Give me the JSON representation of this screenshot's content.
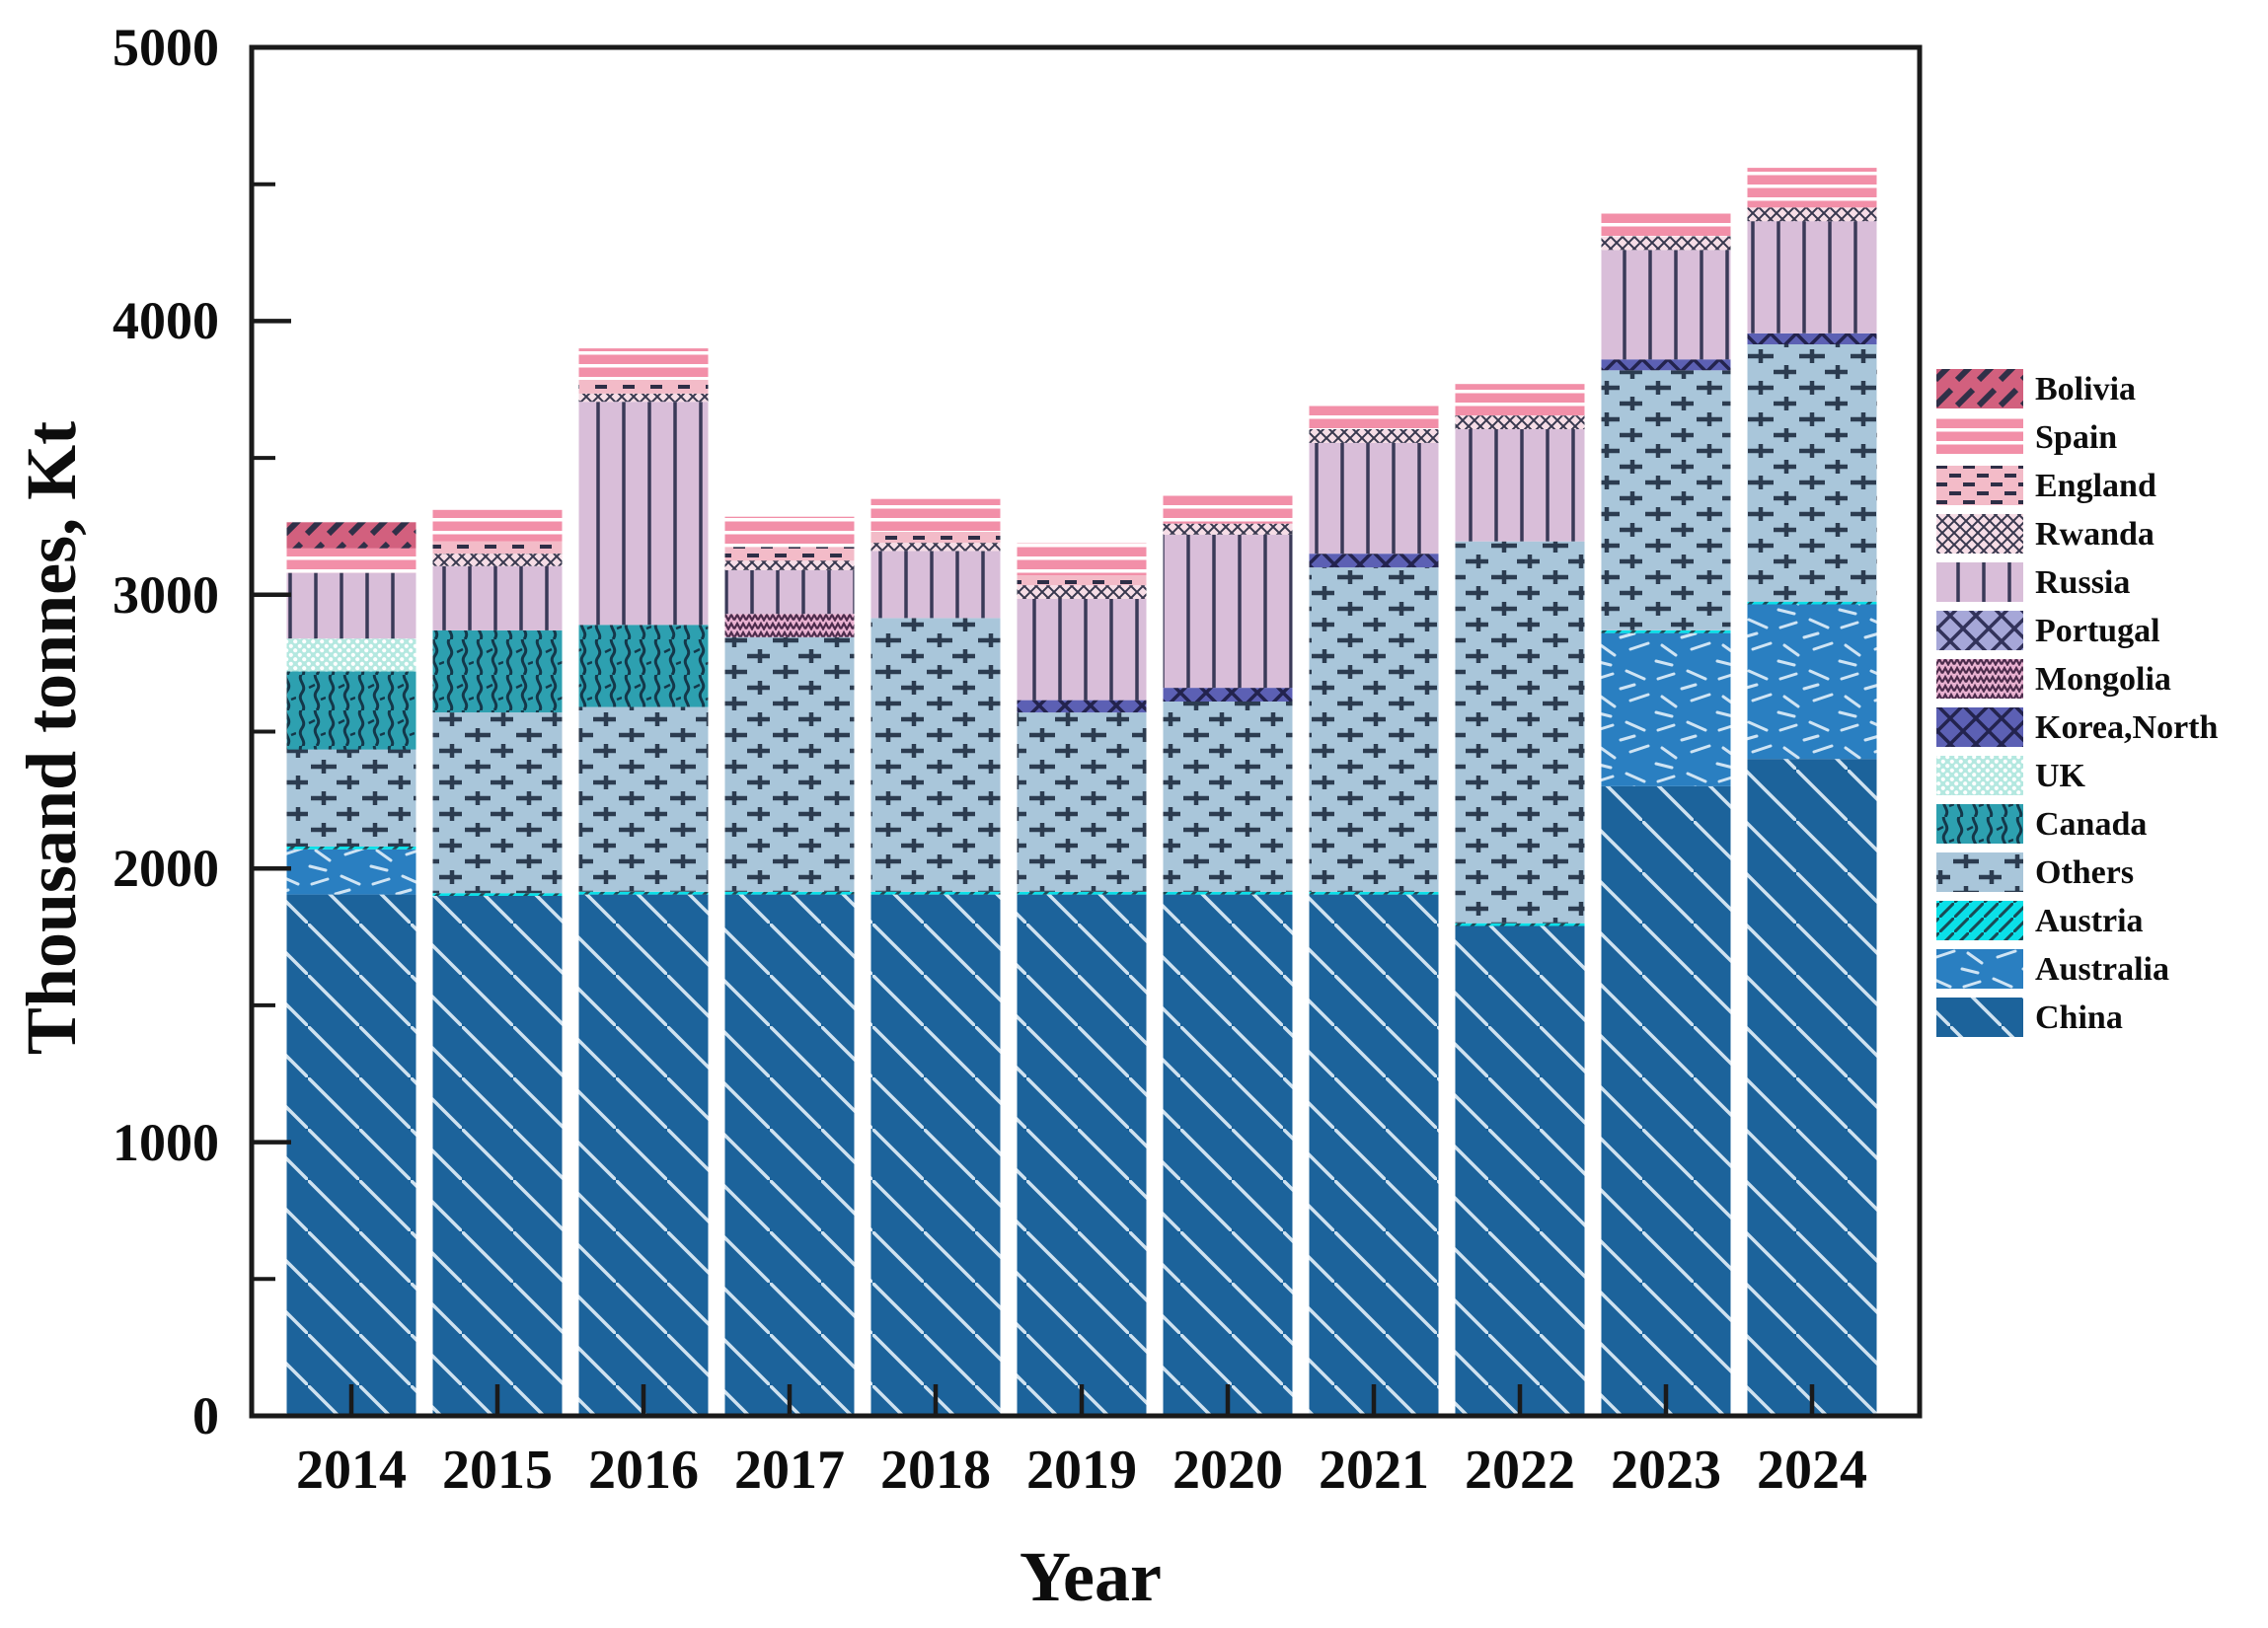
{
  "background": "#ffffff",
  "chart_data": {
    "type": "bar",
    "stacked": true,
    "title": "",
    "xlabel": "Year",
    "ylabel": "Thousand tonnes, Kt",
    "unit": "Kt",
    "categories": [
      "2014",
      "2015",
      "2016",
      "2017",
      "2018",
      "2019",
      "2020",
      "2021",
      "2022",
      "2023",
      "2024"
    ],
    "ylim": [
      0,
      5000
    ],
    "ytick_major_step": 1000,
    "ytick_minor_step": 500,
    "ytick_labels": [
      "0",
      "1000",
      "2000",
      "3000",
      "4000",
      "5000"
    ],
    "grid": false,
    "legend_position": "right-outside",
    "legend_order_top_to_bottom": [
      "Bolivia",
      "Spain",
      "England",
      "Rwanda",
      "Russia",
      "Portugal",
      "Mongolia",
      "Korea,North",
      "UK",
      "Canada",
      "Others",
      "Austria",
      "Australia",
      "China"
    ],
    "series": [
      {
        "name": "China",
        "color": "#1c639b",
        "hatch": "#cfe2f0",
        "pattern": "diag-down-light",
        "values": [
          1905,
          1900,
          1905,
          1905,
          1905,
          1905,
          1905,
          1905,
          1790,
          2300,
          2400
        ]
      },
      {
        "name": "Australia",
        "color": "#2a7fc1",
        "hatch": "#cfe4f4",
        "pattern": "arrows",
        "values": [
          165,
          0,
          0,
          0,
          0,
          0,
          0,
          0,
          0,
          560,
          565
        ]
      },
      {
        "name": "Austria",
        "color": "#0be0e8",
        "hatch": "#1a4a55",
        "pattern": "diag-up-dark",
        "values": [
          10,
          10,
          10,
          10,
          10,
          10,
          10,
          10,
          10,
          10,
          10
        ]
      },
      {
        "name": "Others",
        "color": "#a9c6da",
        "hatch": "#2c3c50",
        "pattern": "plus",
        "values": [
          355,
          660,
          675,
          930,
          1000,
          655,
          695,
          1185,
          1395,
          950,
          940
        ]
      },
      {
        "name": "Canada",
        "color": "#2da0b0",
        "hatch": "#14384a",
        "pattern": "waves",
        "values": [
          285,
          300,
          300,
          0,
          0,
          0,
          0,
          0,
          0,
          0,
          0
        ]
      },
      {
        "name": "UK",
        "color": "#b4e8e0",
        "hatch": "#ffffff",
        "pattern": "dots",
        "values": [
          120,
          0,
          0,
          0,
          0,
          0,
          0,
          0,
          0,
          0,
          0
        ]
      },
      {
        "name": "Korea,North",
        "color": "#5c60b4",
        "hatch": "#23234e",
        "pattern": "cross-x",
        "values": [
          0,
          0,
          0,
          0,
          0,
          45,
          50,
          50,
          0,
          40,
          40
        ]
      },
      {
        "name": "Mongolia",
        "color": "#e9b2d1",
        "hatch": "#4c2c4c",
        "pattern": "zigzag",
        "values": [
          0,
          0,
          0,
          85,
          0,
          0,
          0,
          0,
          0,
          0,
          0
        ]
      },
      {
        "name": "Portugal",
        "color": "#a6a7d8",
        "hatch": "#32325a",
        "pattern": "cross-x",
        "values": [
          0,
          0,
          0,
          0,
          0,
          0,
          0,
          0,
          0,
          0,
          0
        ]
      },
      {
        "name": "Russia",
        "color": "#d9bed9",
        "hatch": "#3a3a58",
        "pattern": "vlines",
        "values": [
          240,
          235,
          815,
          160,
          245,
          370,
          560,
          405,
          410,
          400,
          410
        ]
      },
      {
        "name": "Rwanda",
        "color": "#f6dde6",
        "hatch": "#38384e",
        "pattern": "cross-fine",
        "values": [
          0,
          45,
          30,
          35,
          30,
          50,
          40,
          50,
          50,
          50,
          50
        ]
      },
      {
        "name": "England",
        "color": "#f3bbc8",
        "hatch": "#2e2e46",
        "pattern": "dash-rows",
        "values": [
          0,
          45,
          50,
          50,
          40,
          36,
          0,
          0,
          0,
          0,
          0
        ]
      },
      {
        "name": "Spain",
        "color": "#f28fa8",
        "hatch": "#ffffff",
        "pattern": "hlines-white",
        "values": [
          90,
          115,
          115,
          110,
          120,
          117,
          110,
          90,
          115,
          85,
          145
        ]
      },
      {
        "name": "Bolivia",
        "color": "#d2607e",
        "hatch": "#303048",
        "pattern": "slashes",
        "values": [
          95,
          0,
          0,
          0,
          0,
          0,
          0,
          0,
          0,
          0,
          0
        ]
      }
    ]
  }
}
